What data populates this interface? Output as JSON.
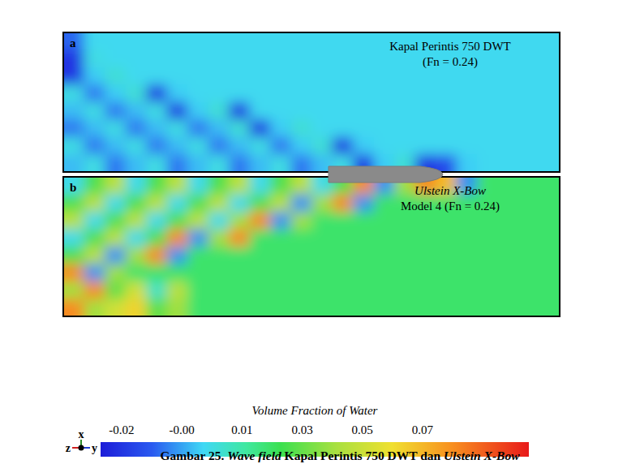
{
  "chart_data": {
    "type": "heatmap",
    "title_parts": [
      "Gambar 25. ",
      "Wave field",
      " Kapal Perintis 750 DWT dan ",
      "Ulstein X-Bow"
    ],
    "panels": [
      {
        "label": "a",
        "title": [
          "Kapal Perintis 750 DWT",
          "(Fn = 0.24)"
        ],
        "cells": [
          [
            -0.01,
            0.004,
            0.004,
            0.004,
            0.004,
            0.004,
            0.004,
            0.004,
            0.004,
            0.004,
            0.004,
            0.004,
            0.004,
            0.004,
            0.004,
            0.004,
            0.004,
            0.004,
            0.004,
            0.004,
            0.004,
            0.004,
            0.004,
            0.004
          ],
          [
            -0.02,
            0.006,
            0.004,
            0.004,
            0.004,
            0.004,
            0.004,
            0.004,
            0.004,
            0.004,
            0.004,
            0.004,
            0.004,
            0.004,
            0.004,
            0.004,
            0.004,
            0.004,
            0.004,
            0.004,
            0.004,
            0.004,
            0.004,
            0.004
          ],
          [
            -0.02,
            0.002,
            0.008,
            0.004,
            0.004,
            0.004,
            0.004,
            0.004,
            0.004,
            0.004,
            0.004,
            0.004,
            0.004,
            0.004,
            0.004,
            0.004,
            0.004,
            0.004,
            0.004,
            0.004,
            0.004,
            0.004,
            0.004,
            0.004
          ],
          [
            0.006,
            -0.008,
            0.002,
            0.008,
            -0.02,
            0.002,
            0.004,
            0.004,
            0.004,
            0.004,
            0.004,
            0.004,
            0.004,
            0.004,
            0.004,
            0.004,
            0.004,
            0.004,
            0.004,
            0.004,
            0.004,
            0.004,
            0.004,
            0.004
          ],
          [
            0.0,
            0.006,
            -0.008,
            0.0,
            0.006,
            -0.02,
            0.002,
            0.008,
            -0.02,
            0.004,
            0.004,
            0.004,
            0.004,
            0.004,
            0.004,
            0.004,
            0.004,
            0.004,
            0.004,
            0.004,
            0.004,
            0.004,
            0.004,
            0.004
          ],
          [
            -0.008,
            0.0,
            0.006,
            -0.008,
            0.0,
            0.006,
            -0.008,
            0.0,
            0.008,
            -0.02,
            0.002,
            0.008,
            0.004,
            0.004,
            0.004,
            0.004,
            0.004,
            0.004,
            0.004,
            0.004,
            0.004,
            0.004,
            0.004,
            0.004
          ],
          [
            0.006,
            -0.008,
            0.0,
            0.006,
            -0.008,
            0.0,
            0.006,
            -0.008,
            0.0,
            0.006,
            -0.008,
            0.002,
            0.008,
            -0.02,
            0.002,
            0.004,
            0.004,
            0.004,
            0.004,
            0.004,
            0.004,
            0.004,
            0.004,
            0.004
          ],
          [
            0.0,
            0.006,
            -0.008,
            0.0,
            0.006,
            -0.008,
            0.0,
            0.006,
            -0.008,
            0.0,
            0.006,
            -0.008,
            0.0,
            0.006,
            -0.02,
            0.002,
            0.008,
            -0.02,
            -0.015,
            0.002,
            0.004,
            0.004,
            0.004,
            0.004
          ]
        ]
      },
      {
        "label": "b",
        "title": [
          "Ulstein X-Bow",
          "Model 4 (Fn = 0.24)"
        ],
        "cells": [
          [
            0.005,
            0.028,
            0.045,
            0.005,
            0.028,
            0.045,
            0.005,
            0.028,
            0.045,
            0.005,
            0.028,
            0.045,
            0.005,
            0.028,
            0.075,
            -0.005,
            0.04,
            0.075,
            0.065,
            -0.005,
            0.022,
            0.022,
            0.022,
            0.022
          ],
          [
            0.028,
            0.045,
            0.005,
            0.028,
            0.045,
            0.005,
            0.028,
            0.045,
            0.005,
            0.028,
            0.045,
            -0.005,
            0.04,
            0.075,
            -0.005,
            0.022,
            0.022,
            0.022,
            0.022,
            0.022,
            0.022,
            0.022,
            0.022,
            0.022
          ],
          [
            0.045,
            0.005,
            0.028,
            0.045,
            0.005,
            0.028,
            0.045,
            0.005,
            0.04,
            0.075,
            -0.005,
            0.04,
            0.022,
            0.022,
            0.022,
            0.022,
            0.022,
            0.022,
            0.022,
            0.022,
            0.022,
            0.022,
            0.022,
            0.022
          ],
          [
            0.005,
            0.028,
            0.045,
            0.005,
            0.028,
            0.075,
            -0.005,
            0.04,
            0.075,
            0.022,
            0.022,
            0.022,
            0.022,
            0.022,
            0.022,
            0.022,
            0.022,
            0.022,
            0.022,
            0.022,
            0.022,
            0.022,
            0.022,
            0.022
          ],
          [
            0.028,
            0.045,
            -0.005,
            0.04,
            0.075,
            -0.005,
            0.022,
            0.022,
            0.022,
            0.022,
            0.022,
            0.022,
            0.022,
            0.022,
            0.022,
            0.022,
            0.022,
            0.022,
            0.022,
            0.022,
            0.022,
            0.022,
            0.022,
            0.022
          ],
          [
            0.075,
            -0.005,
            0.04,
            0.022,
            0.022,
            0.022,
            0.022,
            0.022,
            0.022,
            0.022,
            0.022,
            0.022,
            0.022,
            0.022,
            0.022,
            0.022,
            0.022,
            0.022,
            0.022,
            0.022,
            0.022,
            0.022,
            0.022,
            0.022
          ],
          [
            0.04,
            0.075,
            0.03,
            0.05,
            0.01,
            0.045,
            0.022,
            0.022,
            0.022,
            0.022,
            0.022,
            0.022,
            0.022,
            0.022,
            0.022,
            0.022,
            0.022,
            0.022,
            0.022,
            0.022,
            0.022,
            0.022,
            0.022,
            0.022
          ],
          [
            0.075,
            0.04,
            0.05,
            0.06,
            0.03,
            0.04,
            0.022,
            0.022,
            0.022,
            0.022,
            0.022,
            0.022,
            0.022,
            0.022,
            0.022,
            0.022,
            0.022,
            0.022,
            0.022,
            0.022,
            0.022,
            0.022,
            0.022,
            0.022
          ]
        ]
      }
    ],
    "colorbar": {
      "label": "Volume Fraction of Water",
      "range": [
        -0.026,
        0.096
      ],
      "ticks": [
        -0.02,
        {
          "value": -0.00286,
          "label": "-0.00"
        },
        {
          "value": 0.01429,
          "label": "0.01"
        },
        {
          "value": 0.03143,
          "label": "0.03"
        },
        {
          "value": 0.04857,
          "label": "0.05"
        },
        {
          "value": 0.06571,
          "label": "0.07"
        }
      ]
    },
    "axes_triad": [
      "x",
      "z",
      "y"
    ]
  }
}
